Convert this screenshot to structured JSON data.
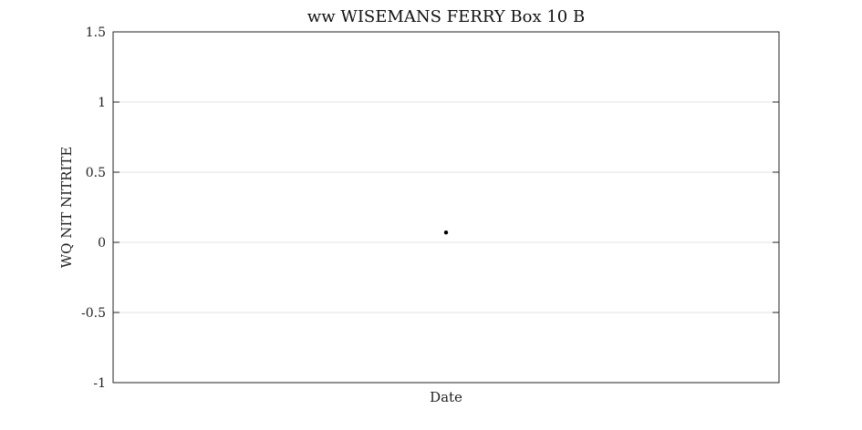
{
  "chart_data": {
    "type": "scatter",
    "title": "ww WISEMANS FERRY Box 10 B",
    "xlabel": "Date",
    "ylabel": "WQ NIT NITRITE",
    "ylim": [
      -1,
      1.5
    ],
    "yticks": [
      "-1",
      "-0.5",
      "0",
      "0.5",
      "1",
      "1.5"
    ],
    "xlim": [
      0,
      1
    ],
    "grid": true,
    "series": [
      {
        "values": [
          {
            "x": 0.5,
            "y": 0.07
          }
        ]
      }
    ],
    "colors": {
      "marker": "#000000",
      "grid": "#e3e3e3",
      "axes": "#222222"
    }
  }
}
